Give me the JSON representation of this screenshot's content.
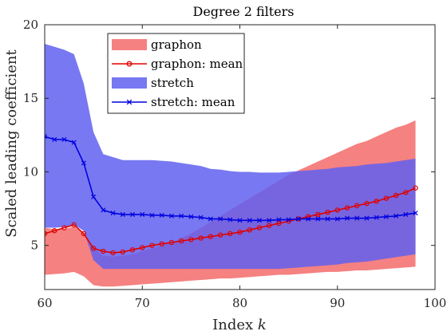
{
  "chart_data": {
    "type": "area",
    "title": "Degree 2 filters",
    "xlabel": "Index ",
    "xlabel_var": "k",
    "ylabel": "Scaled leading coefficient",
    "xlim": [
      60,
      100
    ],
    "ylim": [
      2,
      20
    ],
    "xticks": [
      60,
      70,
      80,
      90,
      100
    ],
    "yticks": [
      5,
      10,
      15,
      20
    ],
    "grid": false,
    "legend_position": "top-left",
    "colors": {
      "graphon_band": "#f36b6b",
      "graphon_mean": "#e00000",
      "stretch_band": "#6060f0",
      "stretch_mean": "#0000e0",
      "overlap_hint": "#7b2fa8"
    },
    "x": [
      60,
      61,
      62,
      63,
      64,
      65,
      66,
      67,
      68,
      69,
      70,
      71,
      72,
      73,
      74,
      75,
      76,
      77,
      78,
      79,
      80,
      81,
      82,
      83,
      84,
      85,
      86,
      87,
      88,
      89,
      90,
      91,
      92,
      93,
      94,
      95,
      96,
      97,
      98
    ],
    "series": [
      {
        "name": "graphon",
        "kind": "band",
        "lower": [
          3.0,
          3.05,
          3.1,
          3.2,
          2.9,
          2.3,
          2.2,
          2.2,
          2.25,
          2.3,
          2.35,
          2.4,
          2.45,
          2.5,
          2.55,
          2.6,
          2.65,
          2.7,
          2.75,
          2.75,
          2.8,
          2.85,
          2.9,
          2.95,
          3.0,
          3.0,
          3.05,
          3.1,
          3.15,
          3.2,
          3.2,
          3.25,
          3.3,
          3.3,
          3.35,
          3.4,
          3.45,
          3.5,
          3.55
        ],
        "upper": [
          6.2,
          6.1,
          6.1,
          6.3,
          5.8,
          4.8,
          4.3,
          4.25,
          4.3,
          4.4,
          4.6,
          4.8,
          5.0,
          5.2,
          5.5,
          5.8,
          6.2,
          6.6,
          7.0,
          7.4,
          7.8,
          8.2,
          8.6,
          9.0,
          9.4,
          9.8,
          10.1,
          10.4,
          10.7,
          11.0,
          11.3,
          11.6,
          11.9,
          12.1,
          12.4,
          12.7,
          13.0,
          13.2,
          13.5
        ]
      },
      {
        "name": "graphon: mean",
        "kind": "line",
        "marker": "circle",
        "values": [
          5.8,
          6.0,
          6.2,
          6.4,
          5.8,
          4.8,
          4.6,
          4.5,
          4.55,
          4.7,
          4.85,
          5.0,
          5.1,
          5.2,
          5.3,
          5.4,
          5.5,
          5.6,
          5.7,
          5.8,
          5.9,
          6.05,
          6.2,
          6.35,
          6.5,
          6.65,
          6.8,
          6.95,
          7.1,
          7.25,
          7.4,
          7.55,
          7.7,
          7.85,
          8.0,
          8.2,
          8.4,
          8.6,
          8.9
        ]
      },
      {
        "name": "stretch",
        "kind": "band",
        "lower": [
          6.2,
          6.2,
          6.25,
          6.4,
          6.0,
          4.0,
          3.4,
          3.4,
          3.4,
          3.4,
          3.4,
          3.4,
          3.4,
          3.4,
          3.4,
          3.4,
          3.4,
          3.4,
          3.4,
          3.4,
          3.4,
          3.4,
          3.4,
          3.4,
          3.4,
          3.45,
          3.5,
          3.55,
          3.6,
          3.65,
          3.7,
          3.8,
          3.85,
          3.9,
          4.0,
          4.1,
          4.2,
          4.3,
          4.4
        ],
        "upper": [
          18.7,
          18.5,
          18.3,
          18.0,
          16.0,
          12.7,
          11.2,
          11.0,
          10.8,
          10.8,
          10.8,
          10.8,
          10.75,
          10.7,
          10.6,
          10.5,
          10.4,
          10.2,
          10.15,
          10.05,
          10.0,
          10.0,
          9.95,
          9.95,
          9.95,
          10.0,
          10.05,
          10.1,
          10.15,
          10.2,
          10.3,
          10.35,
          10.4,
          10.5,
          10.55,
          10.6,
          10.7,
          10.8,
          10.9
        ]
      },
      {
        "name": "stretch: mean",
        "kind": "line",
        "marker": "x",
        "values": [
          12.4,
          12.2,
          12.2,
          12.0,
          10.6,
          8.3,
          7.4,
          7.2,
          7.1,
          7.1,
          7.1,
          7.05,
          7.05,
          7.0,
          7.0,
          6.95,
          6.9,
          6.8,
          6.8,
          6.75,
          6.7,
          6.7,
          6.7,
          6.7,
          6.75,
          6.75,
          6.8,
          6.8,
          6.8,
          6.8,
          6.8,
          6.85,
          6.85,
          6.85,
          6.9,
          6.95,
          7.0,
          7.1,
          7.2
        ]
      }
    ]
  }
}
